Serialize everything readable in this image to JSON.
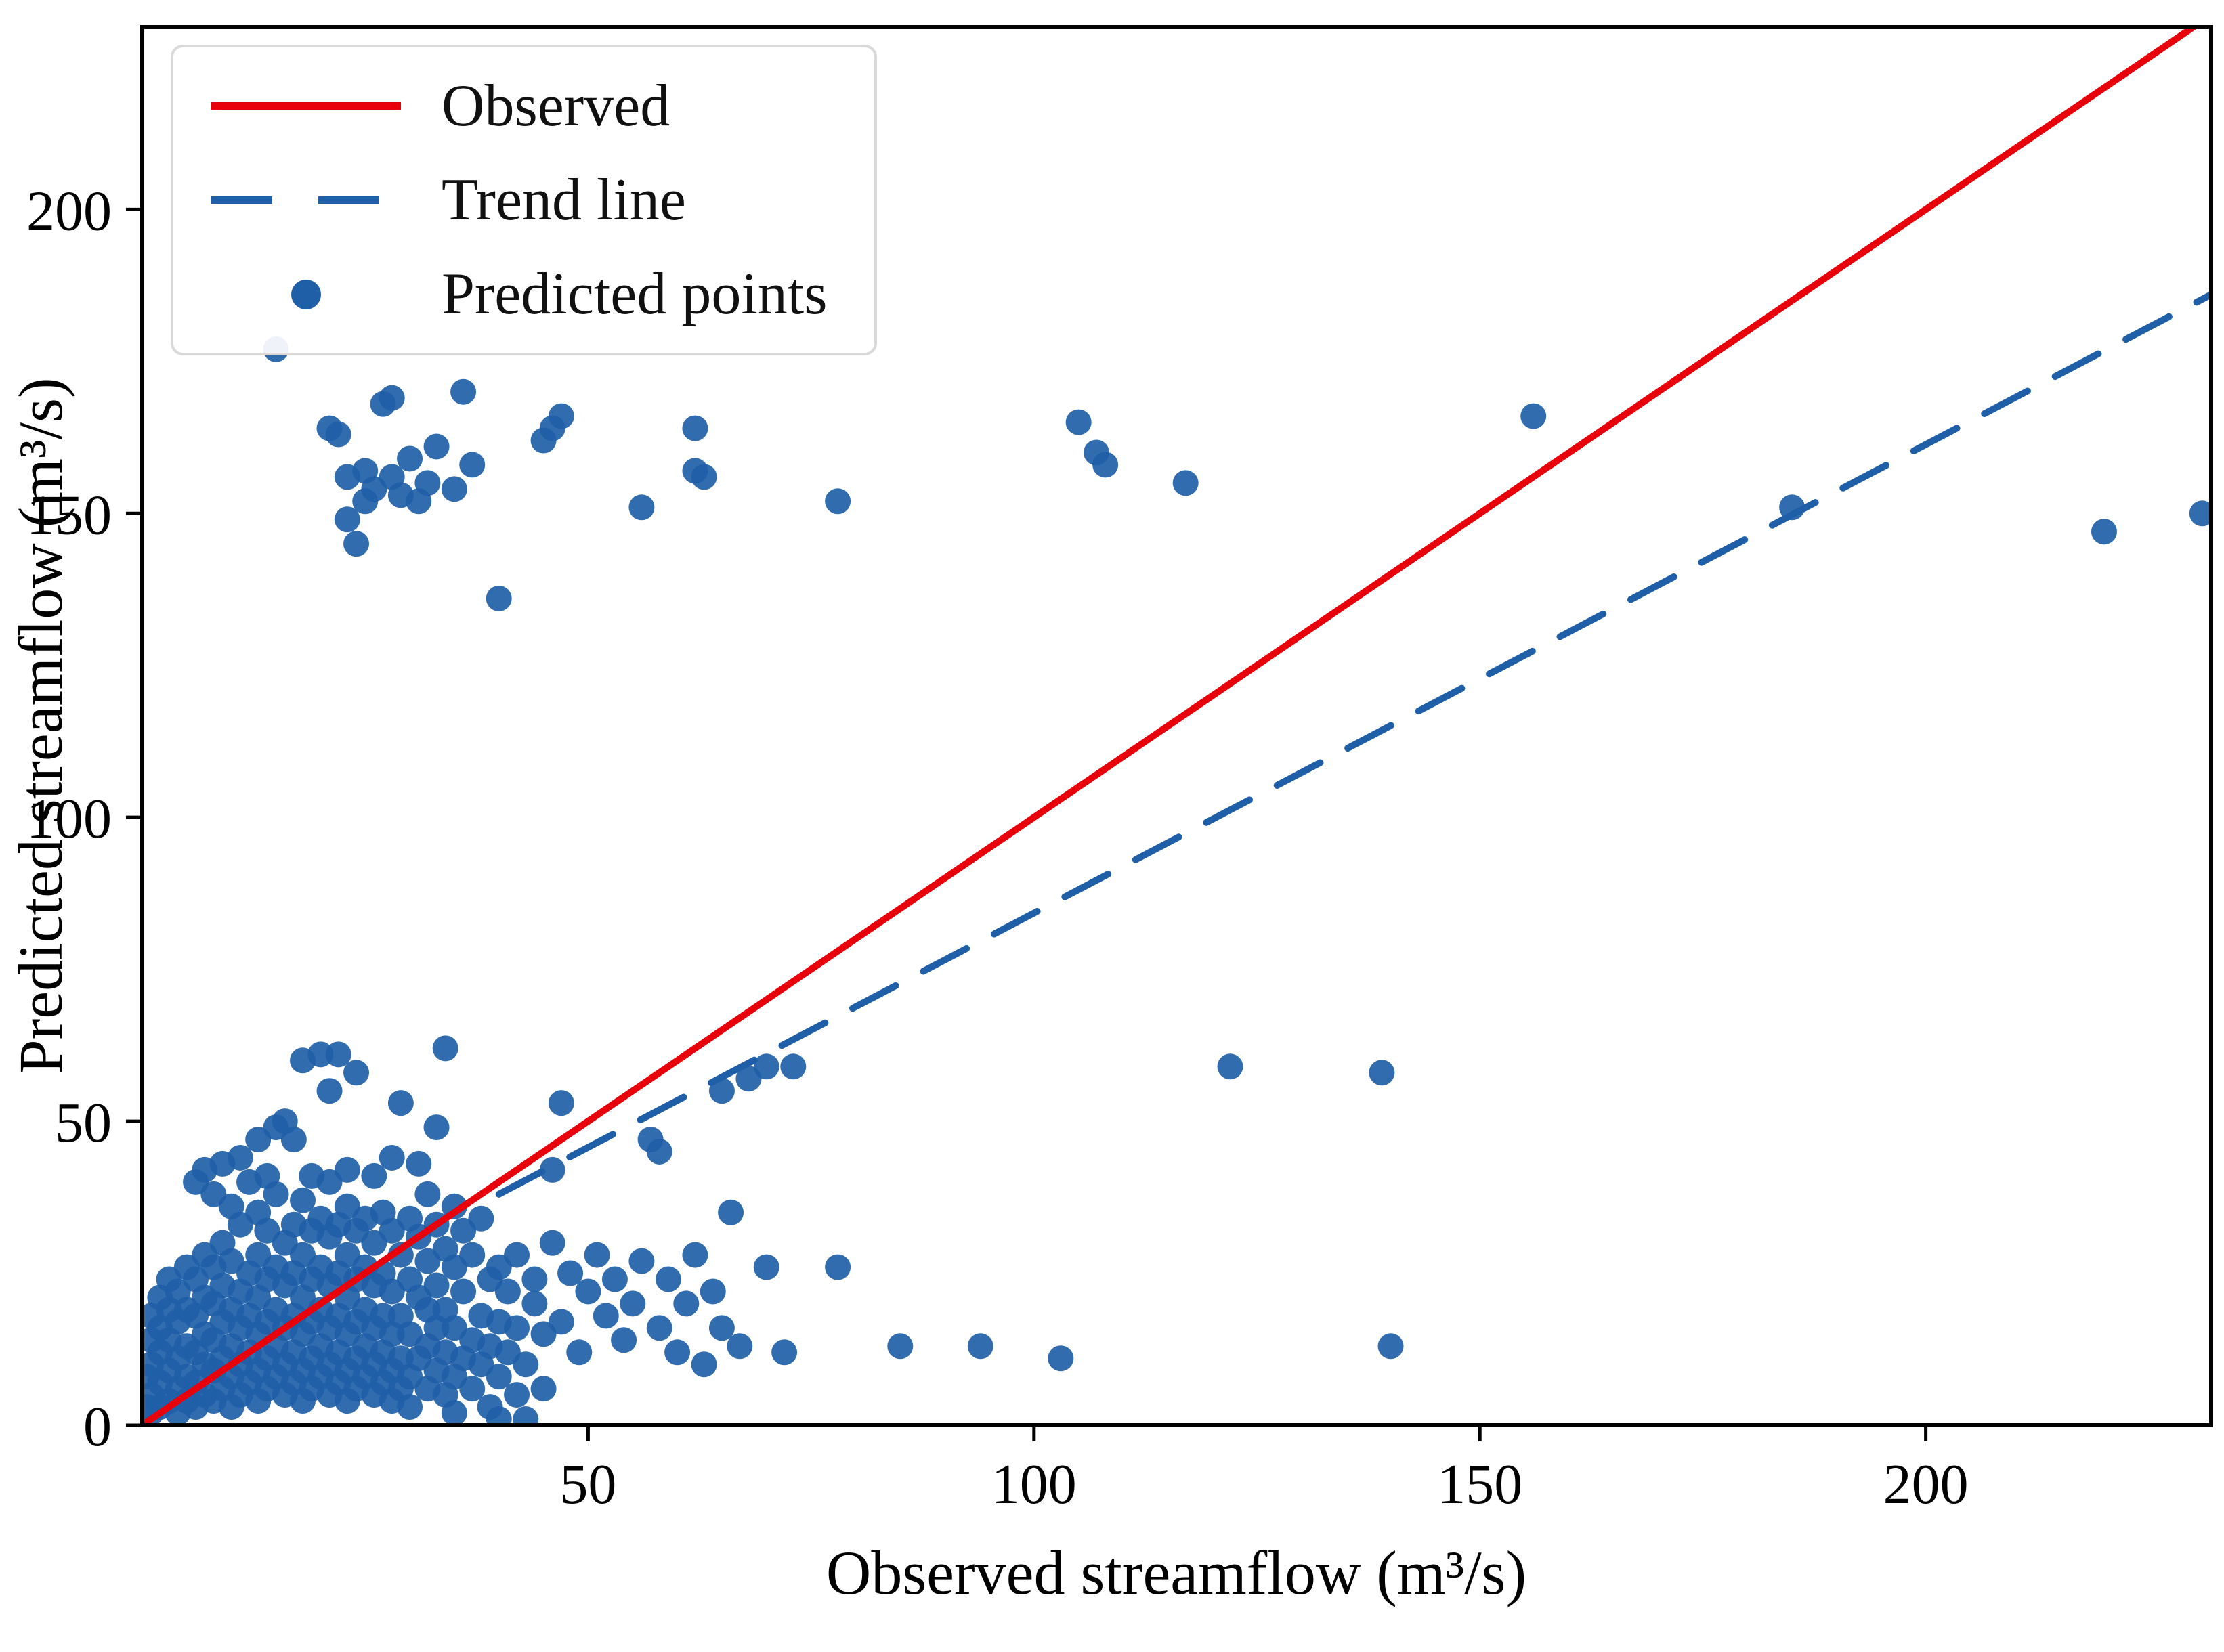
{
  "figure": {
    "background": "#ffffff",
    "axis_color": "#000000",
    "tick_label_color": "#000000"
  },
  "legend": {
    "position": "upper-left",
    "items": [
      {
        "label": "Observed",
        "type": "line",
        "color": "#e8000b"
      },
      {
        "label": "Trend line",
        "type": "dashed",
        "color": "#1f5fa8"
      },
      {
        "label": "Predicted points",
        "type": "dot",
        "color": "#1f5fa8"
      }
    ]
  },
  "chart_data": {
    "type": "scatter",
    "title": "",
    "xlabel": "Observed streamflow (m³/s)",
    "ylabel": "Predicted streamflow (m³/s)",
    "xlim": [
      0,
      232
    ],
    "ylim": [
      0,
      230
    ],
    "xticks": [
      50,
      100,
      150,
      200
    ],
    "yticks": [
      0,
      50,
      100,
      150,
      200
    ],
    "grid": false,
    "legend_position": "upper-left",
    "series": [
      {
        "name": "Observed",
        "type": "line",
        "style": "solid",
        "color": "#e8000b",
        "points": [
          [
            0,
            0
          ],
          [
            232,
            232
          ]
        ]
      },
      {
        "name": "Trend line",
        "type": "line",
        "style": "dashed",
        "color": "#1f5fa8",
        "points": [
          [
            40,
            38
          ],
          [
            232,
            186
          ]
        ]
      },
      {
        "name": "Predicted points",
        "type": "scatter",
        "color": "#1f5fa8",
        "points": [
          [
            0.5,
            3
          ],
          [
            0.5,
            8
          ],
          [
            1,
            2
          ],
          [
            1,
            5
          ],
          [
            1,
            10
          ],
          [
            1,
            14
          ],
          [
            1,
            18
          ],
          [
            2,
            3
          ],
          [
            2,
            7
          ],
          [
            2,
            12
          ],
          [
            2,
            16
          ],
          [
            2,
            21
          ],
          [
            3,
            4
          ],
          [
            3,
            9
          ],
          [
            3,
            14
          ],
          [
            3,
            19
          ],
          [
            3,
            24
          ],
          [
            4,
            2
          ],
          [
            4,
            6
          ],
          [
            4,
            11
          ],
          [
            4,
            17
          ],
          [
            4,
            22
          ],
          [
            5,
            4
          ],
          [
            5,
            8
          ],
          [
            5,
            13
          ],
          [
            5,
            19
          ],
          [
            5,
            26
          ],
          [
            6,
            3
          ],
          [
            6,
            7
          ],
          [
            6,
            12
          ],
          [
            6,
            18
          ],
          [
            6,
            24
          ],
          [
            6,
            40
          ],
          [
            7,
            5
          ],
          [
            7,
            10
          ],
          [
            7,
            15
          ],
          [
            7,
            21
          ],
          [
            7,
            28
          ],
          [
            7,
            42
          ],
          [
            8,
            4
          ],
          [
            8,
            9
          ],
          [
            8,
            14
          ],
          [
            8,
            20
          ],
          [
            8,
            26
          ],
          [
            8,
            38
          ],
          [
            9,
            6
          ],
          [
            9,
            11
          ],
          [
            9,
            17
          ],
          [
            9,
            23
          ],
          [
            9,
            30
          ],
          [
            9,
            43
          ],
          [
            10,
            3
          ],
          [
            10,
            8
          ],
          [
            10,
            13
          ],
          [
            10,
            19
          ],
          [
            10,
            27
          ],
          [
            10,
            36
          ],
          [
            11,
            5
          ],
          [
            11,
            10
          ],
          [
            11,
            16
          ],
          [
            11,
            22
          ],
          [
            11,
            33
          ],
          [
            11,
            44
          ],
          [
            12,
            7
          ],
          [
            12,
            12
          ],
          [
            12,
            18
          ],
          [
            12,
            25
          ],
          [
            12,
            40
          ],
          [
            13,
            4
          ],
          [
            13,
            9
          ],
          [
            13,
            15
          ],
          [
            13,
            21
          ],
          [
            13,
            28
          ],
          [
            13,
            35
          ],
          [
            13,
            47
          ],
          [
            14,
            6
          ],
          [
            14,
            11
          ],
          [
            14,
            17
          ],
          [
            14,
            24
          ],
          [
            14,
            32
          ],
          [
            14,
            41
          ],
          [
            15,
            8
          ],
          [
            15,
            13
          ],
          [
            15,
            19
          ],
          [
            15,
            26
          ],
          [
            15,
            38
          ],
          [
            15,
            49
          ],
          [
            16,
            5
          ],
          [
            16,
            10
          ],
          [
            16,
            16
          ],
          [
            16,
            23
          ],
          [
            16,
            30
          ],
          [
            16,
            50
          ],
          [
            17,
            7
          ],
          [
            17,
            12
          ],
          [
            17,
            18
          ],
          [
            17,
            25
          ],
          [
            17,
            33
          ],
          [
            17,
            47
          ],
          [
            18,
            4
          ],
          [
            18,
            9
          ],
          [
            18,
            15
          ],
          [
            18,
            21
          ],
          [
            18,
            28
          ],
          [
            18,
            37
          ],
          [
            18,
            60
          ],
          [
            19,
            6
          ],
          [
            19,
            11
          ],
          [
            19,
            17
          ],
          [
            19,
            24
          ],
          [
            19,
            32
          ],
          [
            19,
            41
          ],
          [
            20,
            8
          ],
          [
            20,
            13
          ],
          [
            20,
            19
          ],
          [
            20,
            26
          ],
          [
            20,
            34
          ],
          [
            20,
            61
          ],
          [
            21,
            5
          ],
          [
            21,
            10
          ],
          [
            21,
            16
          ],
          [
            21,
            23
          ],
          [
            21,
            31
          ],
          [
            21,
            40
          ],
          [
            21,
            55
          ],
          [
            22,
            7
          ],
          [
            22,
            12
          ],
          [
            22,
            18
          ],
          [
            22,
            25
          ],
          [
            22,
            33
          ],
          [
            22,
            61
          ],
          [
            23,
            4
          ],
          [
            23,
            9
          ],
          [
            23,
            15
          ],
          [
            23,
            21
          ],
          [
            23,
            28
          ],
          [
            23,
            36
          ],
          [
            23,
            42
          ],
          [
            24,
            6
          ],
          [
            24,
            11
          ],
          [
            24,
            17
          ],
          [
            24,
            24
          ],
          [
            24,
            32
          ],
          [
            24,
            58
          ],
          [
            25,
            8
          ],
          [
            25,
            13
          ],
          [
            25,
            19
          ],
          [
            25,
            26
          ],
          [
            25,
            34
          ],
          [
            26,
            5
          ],
          [
            26,
            10
          ],
          [
            26,
            16
          ],
          [
            26,
            23
          ],
          [
            26,
            30
          ],
          [
            26,
            41
          ],
          [
            27,
            7
          ],
          [
            27,
            12
          ],
          [
            27,
            18
          ],
          [
            27,
            25
          ],
          [
            27,
            35
          ],
          [
            28,
            4
          ],
          [
            28,
            9
          ],
          [
            28,
            15
          ],
          [
            28,
            22
          ],
          [
            28,
            32
          ],
          [
            28,
            44
          ],
          [
            29,
            6
          ],
          [
            29,
            11
          ],
          [
            29,
            18
          ],
          [
            29,
            28
          ],
          [
            29,
            53
          ],
          [
            30,
            3
          ],
          [
            30,
            8
          ],
          [
            30,
            15
          ],
          [
            30,
            24
          ],
          [
            30,
            34
          ],
          [
            31,
            11
          ],
          [
            31,
            21
          ],
          [
            31,
            31
          ],
          [
            31,
            43
          ],
          [
            32,
            6
          ],
          [
            32,
            13
          ],
          [
            32,
            19
          ],
          [
            32,
            27
          ],
          [
            32,
            38
          ],
          [
            33,
            9
          ],
          [
            33,
            16
          ],
          [
            33,
            23
          ],
          [
            33,
            33
          ],
          [
            33,
            49
          ],
          [
            34,
            5
          ],
          [
            34,
            12
          ],
          [
            34,
            19
          ],
          [
            34,
            29
          ],
          [
            34,
            62
          ],
          [
            35,
            2
          ],
          [
            35,
            8
          ],
          [
            35,
            16
          ],
          [
            35,
            26
          ],
          [
            35,
            36
          ],
          [
            36,
            11
          ],
          [
            36,
            22
          ],
          [
            36,
            32
          ],
          [
            37,
            6
          ],
          [
            37,
            14
          ],
          [
            37,
            28
          ],
          [
            38,
            10
          ],
          [
            38,
            18
          ],
          [
            38,
            34
          ],
          [
            39,
            3
          ],
          [
            39,
            13
          ],
          [
            39,
            24
          ],
          [
            40,
            1
          ],
          [
            40,
            8
          ],
          [
            40,
            17
          ],
          [
            40,
            26
          ],
          [
            41,
            12
          ],
          [
            41,
            22
          ],
          [
            42,
            5
          ],
          [
            42,
            16
          ],
          [
            42,
            28
          ],
          [
            43,
            1
          ],
          [
            43,
            10
          ],
          [
            44,
            20
          ],
          [
            44,
            24
          ],
          [
            45,
            6
          ],
          [
            45,
            15
          ],
          [
            46,
            30
          ],
          [
            46,
            42
          ],
          [
            47,
            17
          ],
          [
            47,
            53
          ],
          [
            48,
            25
          ],
          [
            49,
            12
          ],
          [
            50,
            22
          ],
          [
            51,
            28
          ],
          [
            52,
            18
          ],
          [
            53,
            24
          ],
          [
            54,
            14
          ],
          [
            55,
            20
          ],
          [
            56,
            27
          ],
          [
            57,
            47
          ],
          [
            58,
            45
          ],
          [
            58,
            16
          ],
          [
            59,
            24
          ],
          [
            60,
            12
          ],
          [
            61,
            20
          ],
          [
            62,
            28
          ],
          [
            63,
            10
          ],
          [
            64,
            22
          ],
          [
            65,
            16
          ],
          [
            65,
            55
          ],
          [
            66,
            35
          ],
          [
            67,
            13
          ],
          [
            68,
            57
          ],
          [
            70,
            26
          ],
          [
            70,
            59
          ],
          [
            72,
            12
          ],
          [
            73,
            59
          ],
          [
            78,
            26
          ],
          [
            85,
            13
          ],
          [
            94,
            13
          ],
          [
            103,
            11
          ],
          [
            122,
            59
          ],
          [
            139,
            58
          ],
          [
            140,
            13
          ],
          [
            15,
            177
          ],
          [
            21,
            164
          ],
          [
            22,
            163
          ],
          [
            23,
            156
          ],
          [
            23,
            149
          ],
          [
            24,
            145
          ],
          [
            25,
            152
          ],
          [
            25,
            157
          ],
          [
            26,
            154
          ],
          [
            27,
            168
          ],
          [
            28,
            156
          ],
          [
            28,
            169
          ],
          [
            29,
            153
          ],
          [
            30,
            159
          ],
          [
            31,
            152
          ],
          [
            32,
            155
          ],
          [
            33,
            161
          ],
          [
            35,
            154
          ],
          [
            36,
            170
          ],
          [
            37,
            158
          ],
          [
            40,
            136
          ],
          [
            45,
            162
          ],
          [
            46,
            164
          ],
          [
            47,
            166
          ],
          [
            56,
            151
          ],
          [
            62,
            164
          ],
          [
            62,
            157
          ],
          [
            63,
            156
          ],
          [
            78,
            152
          ],
          [
            105,
            165
          ],
          [
            107,
            160
          ],
          [
            108,
            158
          ],
          [
            117,
            155
          ],
          [
            156,
            166
          ],
          [
            185,
            151
          ],
          [
            220,
            147
          ],
          [
            231,
            150
          ]
        ]
      }
    ]
  }
}
